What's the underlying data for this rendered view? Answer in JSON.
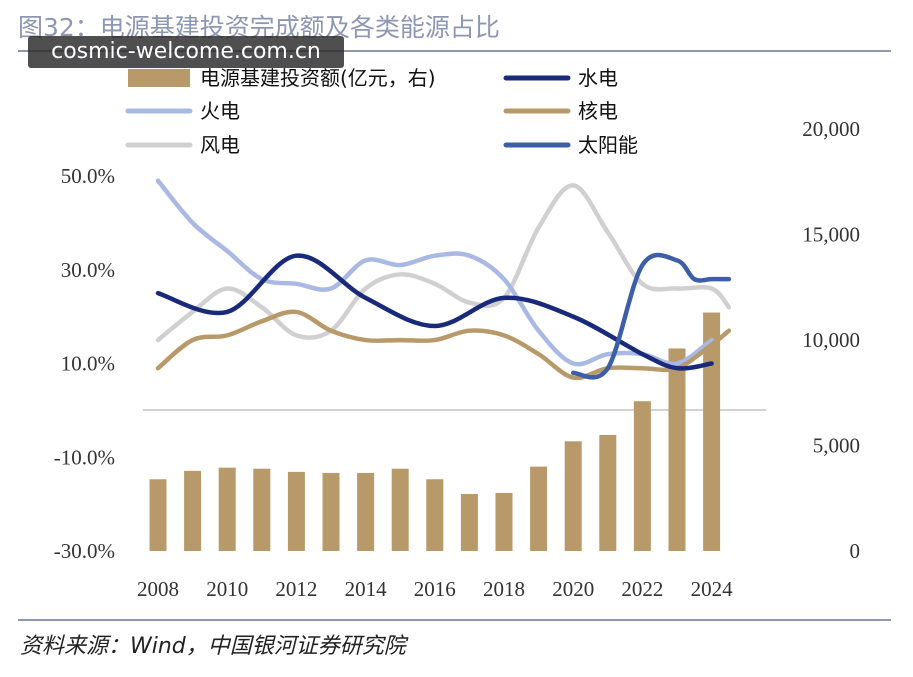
{
  "header": {
    "title": "图32：电源基建投资完成额及各类能源占比",
    "watermark": "cosmic-welcome.com.cn"
  },
  "footer": {
    "source": "资料来源：Wind，中国银河证券研究院"
  },
  "colors": {
    "rule": "#8d97b3",
    "investment": "#b8996a",
    "hydro": "#1a2a7a",
    "thermal": "#a9b9e3",
    "nuclear": "#b8996a",
    "wind": "#d0d0d0",
    "solar": "#3d5fa8"
  },
  "chart_data": {
    "type": "bar",
    "x_ticks": [
      "2008",
      "2010",
      "2012",
      "2014",
      "2016",
      "2018",
      "2020",
      "2022",
      "2024"
    ],
    "y_left": {
      "ticks": [
        "50.0%",
        "30.0%",
        "10.0%",
        "-10.0%",
        "-30.0%"
      ],
      "range": [
        -30,
        50
      ]
    },
    "y_right": {
      "ticks": [
        "20,000",
        "15,000",
        "10,000",
        "5,000",
        "0"
      ],
      "range": [
        0,
        20000
      ]
    },
    "legend": [
      {
        "key": "investment",
        "label": "电源基建投资额(亿元，右)",
        "kind": "bar"
      },
      {
        "key": "hydro",
        "label": "水电",
        "kind": "line"
      },
      {
        "key": "thermal",
        "label": "火电",
        "kind": "line"
      },
      {
        "key": "nuclear",
        "label": "核电",
        "kind": "line"
      },
      {
        "key": "wind",
        "label": "风电",
        "kind": "line"
      },
      {
        "key": "solar",
        "label": "太阳能",
        "kind": "line"
      }
    ],
    "x": [
      2008,
      2009,
      2010,
      2011,
      2012,
      2013,
      2014,
      2015,
      2016,
      2017,
      2018,
      2019,
      2020,
      2021,
      2022,
      2023,
      2024
    ],
    "bars": {
      "name": "电源基建投资额(亿元，右)",
      "values": [
        3400,
        3800,
        3950,
        3900,
        3750,
        3700,
        3700,
        3900,
        3400,
        2700,
        2750,
        4000,
        5200,
        5500,
        7100,
        9600,
        11300
      ]
    },
    "series": [
      {
        "name": "水电",
        "key": "hydro",
        "points": [
          [
            2008,
            25
          ],
          [
            2010,
            21
          ],
          [
            2012,
            33
          ],
          [
            2014,
            24
          ],
          [
            2016,
            18
          ],
          [
            2018,
            24
          ],
          [
            2020,
            20
          ],
          [
            2022,
            12
          ],
          [
            2023,
            9
          ],
          [
            2024,
            10
          ]
        ]
      },
      {
        "name": "火电",
        "key": "thermal",
        "points": [
          [
            2008,
            49
          ],
          [
            2009,
            40
          ],
          [
            2010,
            34
          ],
          [
            2011,
            28
          ],
          [
            2012,
            27
          ],
          [
            2013,
            26
          ],
          [
            2014,
            32
          ],
          [
            2015,
            31
          ],
          [
            2016,
            33
          ],
          [
            2017,
            33
          ],
          [
            2018,
            28
          ],
          [
            2019,
            17
          ],
          [
            2020,
            10
          ],
          [
            2021,
            12
          ],
          [
            2022,
            12
          ],
          [
            2023,
            10
          ],
          [
            2024,
            15
          ]
        ]
      },
      {
        "name": "核电",
        "key": "nuclear",
        "points": [
          [
            2008,
            9
          ],
          [
            2009,
            15
          ],
          [
            2010,
            16
          ],
          [
            2011,
            19
          ],
          [
            2012,
            21
          ],
          [
            2013,
            17
          ],
          [
            2014,
            15
          ],
          [
            2015,
            15
          ],
          [
            2016,
            15
          ],
          [
            2017,
            17
          ],
          [
            2018,
            16
          ],
          [
            2019,
            12
          ],
          [
            2020,
            7
          ],
          [
            2021,
            9
          ],
          [
            2022,
            9
          ],
          [
            2023,
            9
          ],
          [
            2024,
            14
          ],
          [
            2024.5,
            17
          ]
        ]
      },
      {
        "name": "风电",
        "key": "wind",
        "points": [
          [
            2008,
            15
          ],
          [
            2009,
            21
          ],
          [
            2010,
            26
          ],
          [
            2011,
            22
          ],
          [
            2012,
            16
          ],
          [
            2013,
            17
          ],
          [
            2014,
            26
          ],
          [
            2015,
            29
          ],
          [
            2016,
            27
          ],
          [
            2017,
            23
          ],
          [
            2018,
            24
          ],
          [
            2019,
            39
          ],
          [
            2020,
            48
          ],
          [
            2021,
            38
          ],
          [
            2022,
            27
          ],
          [
            2023,
            26
          ],
          [
            2024,
            26
          ],
          [
            2024.5,
            22
          ]
        ]
      },
      {
        "name": "太阳能",
        "key": "solar",
        "points": [
          [
            2020,
            8
          ],
          [
            2021,
            9
          ],
          [
            2022,
            31
          ],
          [
            2023,
            32
          ],
          [
            2023.5,
            28
          ],
          [
            2024,
            28
          ],
          [
            2024.5,
            28
          ]
        ]
      }
    ]
  }
}
